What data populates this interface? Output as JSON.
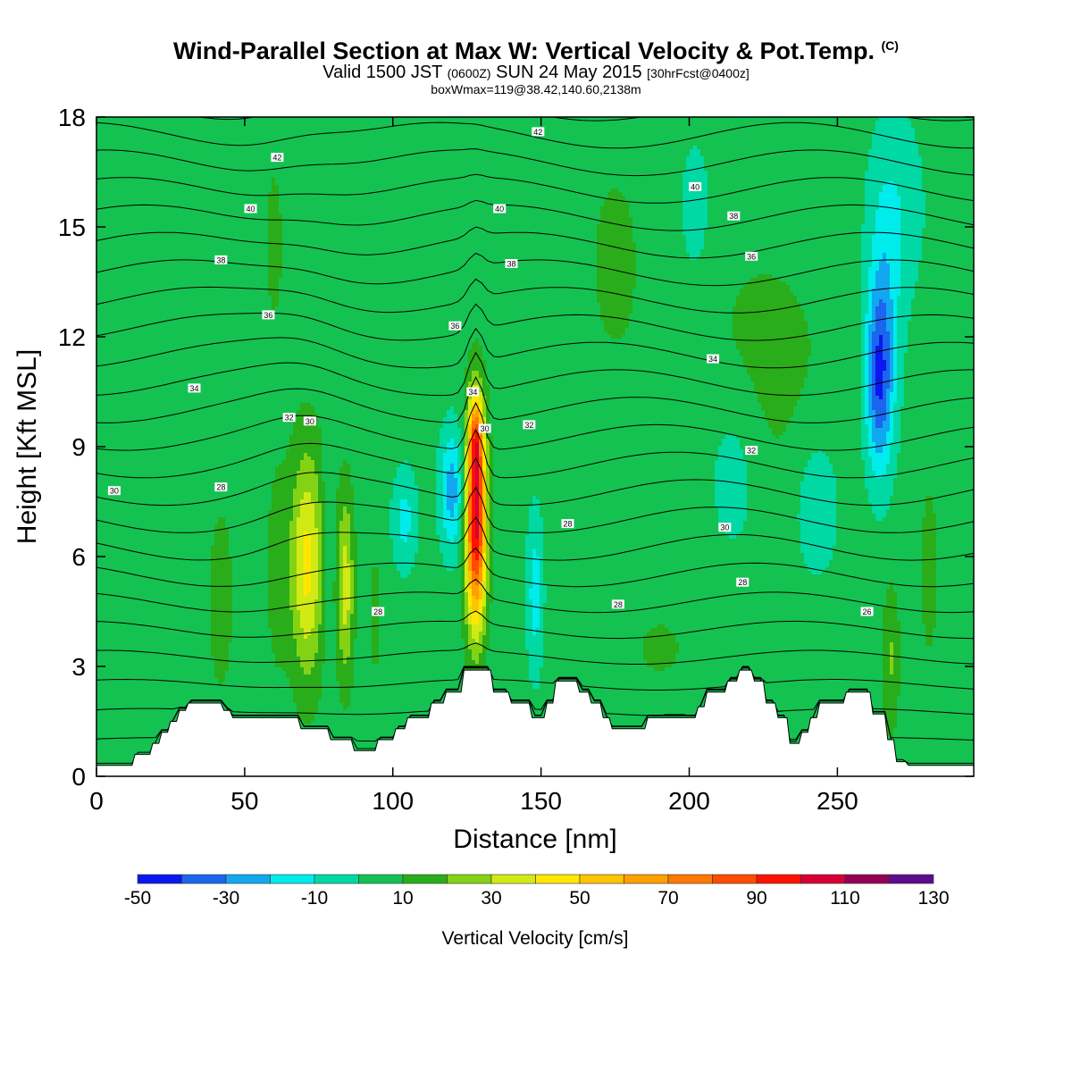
{
  "title": {
    "main": "Wind-Parallel Section at Max W: Vertical Velocity & Pot.Temp.",
    "copyright": "(C)",
    "valid_prefix": "Valid 1500 JST",
    "valid_utc": "(0600Z)",
    "valid_date": "SUN 24 May 2015",
    "forecast": "[30hrFcst@0400z]",
    "box": "boxWmax=119@38.42,140.60,2138m"
  },
  "chart_data": {
    "type": "heatmap",
    "xlabel": "Distance [nm]",
    "ylabel": "Height [Kft MSL]",
    "xlim": [
      0,
      296
    ],
    "ylim": [
      0,
      18
    ],
    "xticks": [
      0,
      50,
      100,
      150,
      200,
      250
    ],
    "yticks": [
      0,
      3,
      6,
      9,
      12,
      15,
      18
    ],
    "colorbar": {
      "label": "Vertical Velocity [cm/s]",
      "tick_values": [
        -50,
        -30,
        -10,
        10,
        30,
        50,
        70,
        90,
        110,
        130
      ],
      "tick_labels": [
        "-50",
        "-30",
        "-10",
        "10",
        "30",
        "50",
        "70",
        "90",
        "110",
        "130"
      ],
      "bounds": [
        -50,
        -40,
        -30,
        -20,
        -10,
        0,
        10,
        20,
        30,
        40,
        50,
        60,
        70,
        80,
        90,
        100,
        110,
        120,
        130
      ],
      "colors": [
        "#0a17f0",
        "#1a66ee",
        "#12a8f0",
        "#00ecec",
        "#00d9a4",
        "#14c252",
        "#2aad1a",
        "#84d214",
        "#d2ea14",
        "#ffe700",
        "#ffc400",
        "#ffa000",
        "#ff7800",
        "#ff4c00",
        "#ff1200",
        "#d60035",
        "#960055",
        "#5a0d8c"
      ]
    },
    "background_value": 5,
    "velocity_features": [
      {
        "x": 128,
        "y": 7.0,
        "sx": 2.4,
        "sy": 2.0,
        "amp": 100
      },
      {
        "x": 128,
        "y": 9.2,
        "sx": 1.6,
        "sy": 0.8,
        "amp": 40
      },
      {
        "x": 71,
        "y": 5.8,
        "sx": 4.0,
        "sy": 2.2,
        "amp": 38
      },
      {
        "x": 84,
        "y": 5.2,
        "sx": 2.0,
        "sy": 1.8,
        "amp": 30
      },
      {
        "x": 61,
        "y": 5.6,
        "sx": 2.4,
        "sy": 1.8,
        "amp": 12
      },
      {
        "x": 42,
        "y": 4.8,
        "sx": 2.6,
        "sy": 1.6,
        "amp": 14
      },
      {
        "x": 94,
        "y": 4.4,
        "sx": 1.5,
        "sy": 1.5,
        "amp": 8
      },
      {
        "x": 268,
        "y": 3.2,
        "sx": 2.0,
        "sy": 1.4,
        "amp": 16
      },
      {
        "x": 281,
        "y": 5.6,
        "sx": 2.0,
        "sy": 1.6,
        "amp": 12
      },
      {
        "x": 78,
        "y": 6.0,
        "sx": 1.2,
        "sy": 1.8,
        "amp": -14
      },
      {
        "x": 120,
        "y": 7.8,
        "sx": 3.0,
        "sy": 1.2,
        "amp": -30
      },
      {
        "x": 104,
        "y": 7.0,
        "sx": 3.0,
        "sy": 1.0,
        "amp": -18
      },
      {
        "x": 148,
        "y": 5.0,
        "sx": 2.0,
        "sy": 1.6,
        "amp": -20
      },
      {
        "x": 215,
        "y": 8.5,
        "sx": 7.0,
        "sy": 1.8,
        "amp": -12
      },
      {
        "x": 243,
        "y": 7.5,
        "sx": 6.0,
        "sy": 1.6,
        "amp": -12
      },
      {
        "x": 264,
        "y": 10.8,
        "sx": 3.2,
        "sy": 1.8,
        "amp": -38
      },
      {
        "x": 266,
        "y": 12.5,
        "sx": 4.0,
        "sy": 2.5,
        "amp": -15
      },
      {
        "x": 270,
        "y": 15.5,
        "sx": 7.0,
        "sy": 2.0,
        "amp": -12
      },
      {
        "x": 202,
        "y": 15.5,
        "sx": 4.0,
        "sy": 1.5,
        "amp": -10
      },
      {
        "x": 225,
        "y": 11.0,
        "sx": 16.0,
        "sy": 2.5,
        "amp": 9
      },
      {
        "x": 175,
        "y": 14.0,
        "sx": 8.0,
        "sy": 2.5,
        "amp": 7
      },
      {
        "x": 60,
        "y": 14.5,
        "sx": 4.0,
        "sy": 3.0,
        "amp": 6
      },
      {
        "x": 190,
        "y": 3.5,
        "sx": 10.0,
        "sy": 1.0,
        "amp": 6
      }
    ],
    "terrain": [
      [
        0,
        0.3
      ],
      [
        6,
        0.3
      ],
      [
        12,
        0.3
      ],
      [
        13,
        0.6
      ],
      [
        18,
        0.6
      ],
      [
        19,
        0.9
      ],
      [
        21,
        0.9
      ],
      [
        22,
        1.2
      ],
      [
        24,
        1.2
      ],
      [
        25,
        1.5
      ],
      [
        27,
        1.5
      ],
      [
        28,
        1.8
      ],
      [
        30,
        1.8
      ],
      [
        31,
        2.0
      ],
      [
        42,
        2.0
      ],
      [
        43,
        1.8
      ],
      [
        45,
        1.8
      ],
      [
        46,
        1.6
      ],
      [
        68,
        1.6
      ],
      [
        69,
        1.3
      ],
      [
        78,
        1.3
      ],
      [
        79,
        1.0
      ],
      [
        86,
        1.0
      ],
      [
        87,
        0.7
      ],
      [
        94,
        0.7
      ],
      [
        95,
        1.0
      ],
      [
        100,
        1.0
      ],
      [
        101,
        1.3
      ],
      [
        104,
        1.3
      ],
      [
        105,
        1.6
      ],
      [
        112,
        1.6
      ],
      [
        113,
        2.0
      ],
      [
        117,
        2.0
      ],
      [
        118,
        2.3
      ],
      [
        123,
        2.3
      ],
      [
        124,
        2.9
      ],
      [
        133,
        2.9
      ],
      [
        134,
        2.3
      ],
      [
        139,
        2.3
      ],
      [
        140,
        2.0
      ],
      [
        146,
        2.0
      ],
      [
        147,
        1.6
      ],
      [
        151,
        1.6
      ],
      [
        152,
        2.0
      ],
      [
        154,
        2.0
      ],
      [
        155,
        2.6
      ],
      [
        162,
        2.6
      ],
      [
        163,
        2.3
      ],
      [
        166,
        2.3
      ],
      [
        167,
        2.0
      ],
      [
        170,
        2.0
      ],
      [
        171,
        1.6
      ],
      [
        173,
        1.6
      ],
      [
        174,
        1.3
      ],
      [
        185,
        1.3
      ],
      [
        186,
        1.6
      ],
      [
        202,
        1.6
      ],
      [
        203,
        1.9
      ],
      [
        205,
        1.9
      ],
      [
        206,
        2.3
      ],
      [
        212,
        2.3
      ],
      [
        213,
        2.6
      ],
      [
        216,
        2.6
      ],
      [
        217,
        2.9
      ],
      [
        221,
        2.9
      ],
      [
        222,
        2.6
      ],
      [
        225,
        2.6
      ],
      [
        226,
        2.0
      ],
      [
        229,
        2.0
      ],
      [
        230,
        1.6
      ],
      [
        233,
        1.6
      ],
      [
        234,
        0.9
      ],
      [
        237,
        0.9
      ],
      [
        238,
        1.2
      ],
      [
        240,
        1.2
      ],
      [
        241,
        1.6
      ],
      [
        243,
        1.6
      ],
      [
        244,
        2.0
      ],
      [
        252,
        2.0
      ],
      [
        253,
        2.3
      ],
      [
        261,
        2.3
      ],
      [
        262,
        1.7
      ],
      [
        266,
        1.7
      ],
      [
        267,
        1.0
      ],
      [
        269,
        1.0
      ],
      [
        270,
        0.4
      ],
      [
        273,
        0.4
      ],
      [
        274,
        0.3
      ],
      [
        296,
        0.3
      ]
    ],
    "isentropes": {
      "count": 26,
      "base": 0.25,
      "step": 0.75,
      "labels": [
        {
          "text": "30",
          "x": 6,
          "y": 7.8
        },
        {
          "text": "28",
          "x": 42,
          "y": 7.9
        },
        {
          "text": "34",
          "x": 33,
          "y": 10.6
        },
        {
          "text": "32",
          "x": 65,
          "y": 9.8
        },
        {
          "text": "30",
          "x": 72,
          "y": 9.7
        },
        {
          "text": "36",
          "x": 58,
          "y": 12.6
        },
        {
          "text": "38",
          "x": 42,
          "y": 14.1
        },
        {
          "text": "40",
          "x": 52,
          "y": 15.5
        },
        {
          "text": "42",
          "x": 61,
          "y": 16.9
        },
        {
          "text": "42",
          "x": 149,
          "y": 17.6
        },
        {
          "text": "40",
          "x": 136,
          "y": 15.5
        },
        {
          "text": "38",
          "x": 140,
          "y": 14.0
        },
        {
          "text": "36",
          "x": 121,
          "y": 12.3
        },
        {
          "text": "34",
          "x": 127,
          "y": 10.5
        },
        {
          "text": "30",
          "x": 131,
          "y": 9.5
        },
        {
          "text": "32",
          "x": 146,
          "y": 9.6
        },
        {
          "text": "28",
          "x": 95,
          "y": 4.5
        },
        {
          "text": "28",
          "x": 159,
          "y": 6.9
        },
        {
          "text": "28",
          "x": 176,
          "y": 4.7
        },
        {
          "text": "40",
          "x": 202,
          "y": 16.1
        },
        {
          "text": "38",
          "x": 215,
          "y": 15.3
        },
        {
          "text": "36",
          "x": 221,
          "y": 14.2
        },
        {
          "text": "34",
          "x": 208,
          "y": 11.4
        },
        {
          "text": "32",
          "x": 221,
          "y": 8.9
        },
        {
          "text": "30",
          "x": 212,
          "y": 6.8
        },
        {
          "text": "28",
          "x": 218,
          "y": 5.3
        },
        {
          "text": "26",
          "x": 260,
          "y": 4.5
        }
      ]
    }
  }
}
